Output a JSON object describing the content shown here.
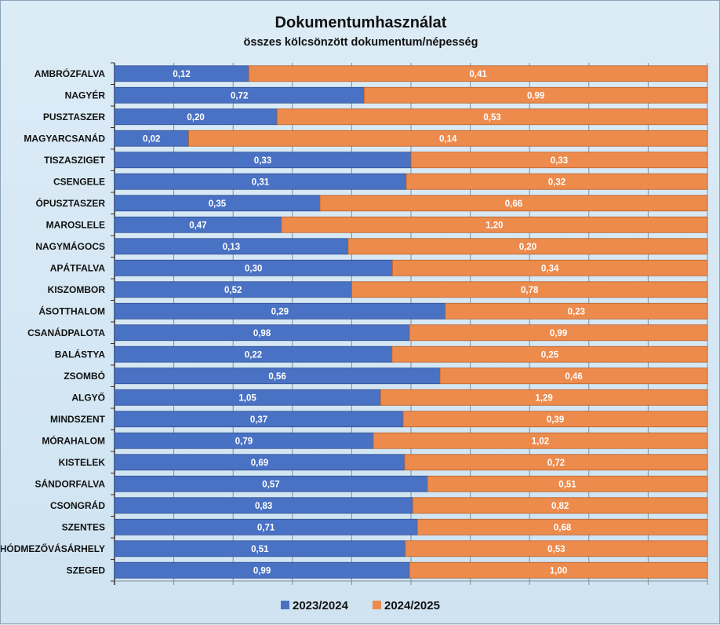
{
  "chart_data": {
    "type": "bar",
    "orientation": "horizontal",
    "stacking": "percent",
    "title": "Dokumentumhasználat",
    "subtitle": "összes kölcsönzött dokumentum/népesség",
    "categories": [
      "AMBRÓZFALVA",
      "NAGYÉR",
      "PUSZTASZER",
      "MAGYARCSANÁD",
      "TISZASZIGET",
      "CSENGELE",
      "ÓPUSZTASZER",
      "MAROSLELE",
      "NAGYMÁGOCS",
      "APÁTFALVA",
      "KISZOMBOR",
      "ÁSOTTHALOM",
      "CSANÁDPALOTA",
      "BALÁSTYA",
      "ZSOMBÓ",
      "ALGYŐ",
      "MINDSZENT",
      "MÓRAHALOM",
      "KISTELEK",
      "SÁNDORFALVA",
      "CSONGRÁD",
      "SZENTES",
      "HÓDMEZŐVÁSÁRHELY",
      "SZEGED"
    ],
    "series": [
      {
        "name": "2023/2024",
        "color": "#4a72c4",
        "values": [
          0.12,
          0.72,
          0.2,
          0.02,
          0.33,
          0.31,
          0.35,
          0.47,
          0.13,
          0.3,
          0.52,
          0.29,
          0.98,
          0.22,
          0.56,
          1.05,
          0.37,
          0.79,
          0.69,
          0.57,
          0.83,
          0.71,
          0.51,
          0.99
        ],
        "labels": [
          "0,12",
          "0,72",
          "0,20",
          "0,02",
          "0,33",
          "0,31",
          "0,35",
          "0,47",
          "0,13",
          "0,30",
          "0,52",
          "0,29",
          "0,98",
          "0,22",
          "0,56",
          "1,05",
          "0,37",
          "0,79",
          "0,69",
          "0,57",
          "0,83",
          "0,71",
          "0,51",
          "0,99"
        ]
      },
      {
        "name": "2024/2025",
        "color": "#ed8b4c",
        "values": [
          0.41,
          0.99,
          0.53,
          0.14,
          0.33,
          0.32,
          0.66,
          1.2,
          0.2,
          0.34,
          0.78,
          0.23,
          0.99,
          0.25,
          0.46,
          1.29,
          0.39,
          1.02,
          0.72,
          0.51,
          0.82,
          0.68,
          0.53,
          1.0
        ],
        "labels": [
          "0,41",
          "0,99",
          "0,53",
          "0,14",
          "0,33",
          "0,32",
          "0,66",
          "1,20",
          "0,20",
          "0,34",
          "0,78",
          "0,23",
          "0,99",
          "0,25",
          "0,46",
          "1,29",
          "0,39",
          "1,02",
          "0,72",
          "0,51",
          "0,82",
          "0,68",
          "0,53",
          "1,00"
        ]
      }
    ],
    "xlim": [
      0,
      1
    ],
    "grid": true,
    "legend": "bottom",
    "x_ticks_labeled": false
  }
}
